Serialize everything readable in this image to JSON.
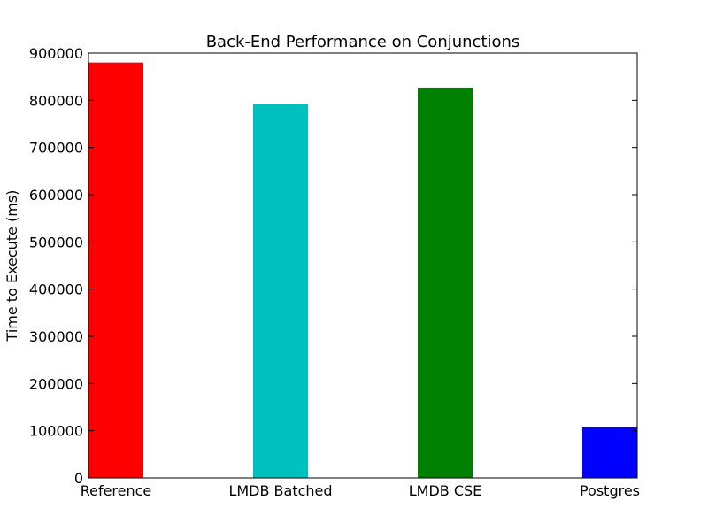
{
  "chart_data": {
    "type": "bar",
    "title": "Back-End Performance on  Conjunctions",
    "xlabel": "",
    "ylabel": "Time to Execute (ms)",
    "categories": [
      "Reference",
      "LMDB Batched",
      "LMDB CSE",
      "Postgres"
    ],
    "values": [
      880000,
      792000,
      827000,
      107000
    ],
    "colors": [
      "#ff0000",
      "#00bfbf",
      "#008000",
      "#0000ff"
    ],
    "ylim": [
      0,
      900000
    ],
    "yticks": [
      0,
      100000,
      200000,
      300000,
      400000,
      500000,
      600000,
      700000,
      800000,
      900000
    ],
    "grid": false,
    "legend": "none"
  }
}
